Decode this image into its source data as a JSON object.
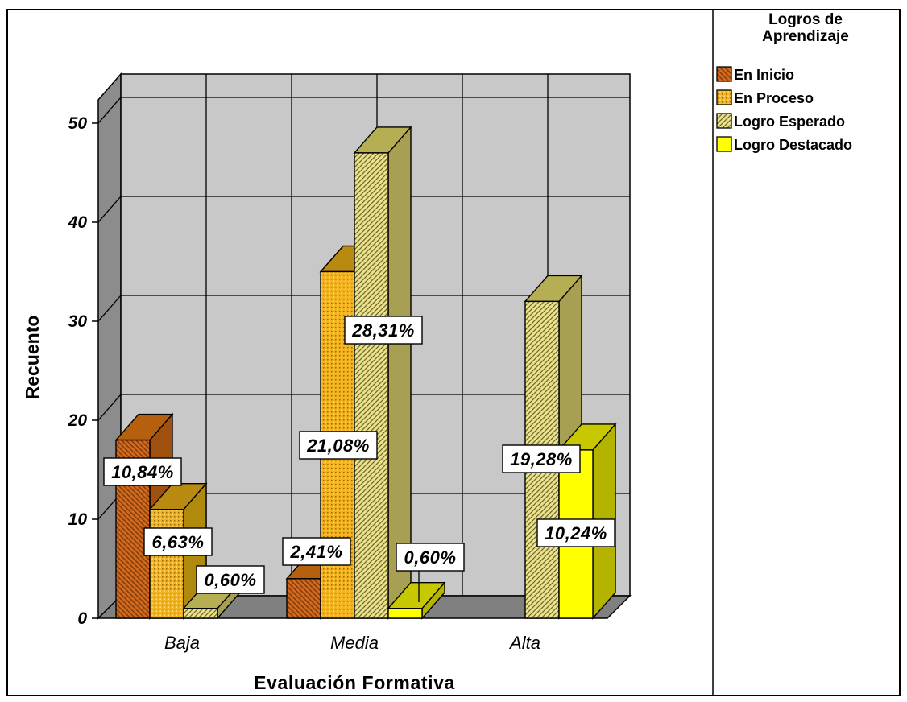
{
  "chart_data": {
    "type": "bar",
    "xlabel": "Evaluación Formativa",
    "ylabel": "Recuento",
    "ylim": [
      0,
      50
    ],
    "yticks": [
      "0",
      "10",
      "20",
      "30",
      "40",
      "50"
    ],
    "categories": [
      "Baja",
      "Media",
      "Alta"
    ],
    "legend_title": "Logros de Aprendizaje",
    "legend_placement": "right",
    "grid": true,
    "series": [
      {
        "name": "En Inicio",
        "values": [
          18,
          4,
          0
        ],
        "labels": [
          "10,84%",
          "2,41%",
          ""
        ]
      },
      {
        "name": "En Proceso",
        "values": [
          11,
          35,
          0
        ],
        "labels": [
          "6,63%",
          "21,08%",
          ""
        ]
      },
      {
        "name": "Logro Esperado",
        "values": [
          1,
          47,
          32
        ],
        "labels": [
          "0,60%",
          "28,31%",
          "19,28%"
        ]
      },
      {
        "name": "Logro Destacado",
        "values": [
          0,
          1,
          17
        ],
        "labels": [
          "",
          "0,60%",
          "10,24%"
        ]
      }
    ]
  },
  "colors": {
    "en_inicio": "#d2691e",
    "en_proceso": "#f0b21e",
    "logro_esperado": "#e8e08a",
    "logro_destacado": "#ffff00",
    "wall": "#c8c8c8",
    "wall_side": "#8c8c8c"
  }
}
